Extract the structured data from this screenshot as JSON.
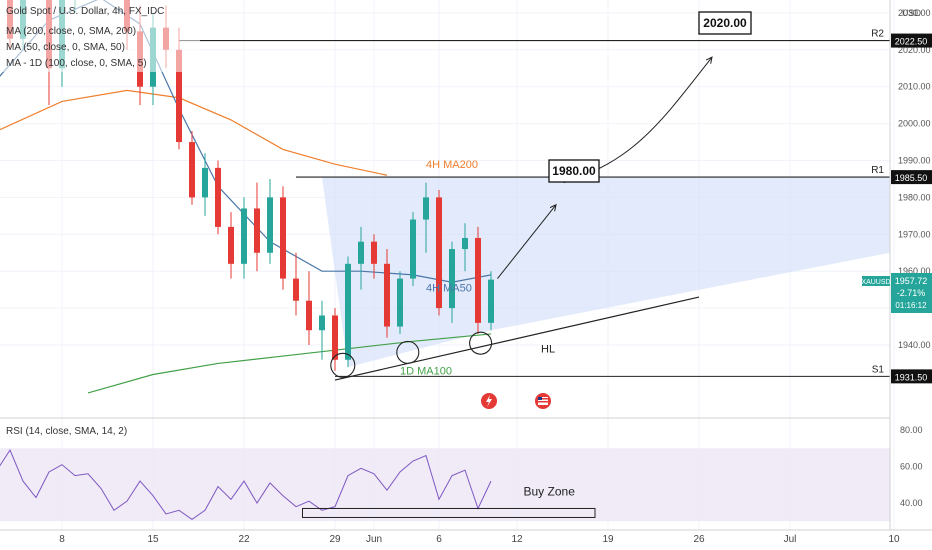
{
  "header": {
    "symbol_line": "Gold Spot / U.S. Dollar, 4h, FX_IDC",
    "indicators": [
      "MA (200, close, 0, SMA, 200)",
      "MA (50, close, 0, SMA, 50)",
      "MA - 1D (100, close, 0, SMA, 5)"
    ],
    "currency": "USD"
  },
  "colors": {
    "up": "#26a69a",
    "down": "#e53935",
    "ma50": "#4a76a8",
    "ma200": "#f07e2c",
    "ma100d": "#43a047",
    "zone": "#d8e3fb",
    "rsi": "#7e57c2",
    "rsi_band": "#ede7f6"
  },
  "price_axis": {
    "ticks": [
      1940,
      1950,
      1960,
      1970,
      1980,
      1990,
      2000,
      2010,
      2020,
      2030
    ],
    "tick_labels": [
      "1940.00",
      "1950.00",
      "1960.00",
      "1970.00",
      "1980.00",
      "1990.00",
      "2000.00",
      "2010.00",
      "2020.00",
      "2030.00"
    ]
  },
  "rsi_axis": {
    "ticks": [
      40,
      60,
      80
    ],
    "tick_labels": [
      "40.00",
      "60.00",
      "80.00"
    ]
  },
  "time_axis": {
    "labels": [
      "8",
      "15",
      "22",
      "29",
      "Jun",
      "6",
      "12",
      "19",
      "26",
      "Jul",
      "10"
    ],
    "units": [
      8,
      15,
      22,
      29,
      32,
      37,
      43,
      50,
      57,
      64,
      72
    ]
  },
  "levels": [
    {
      "name": "R2",
      "value": 2022.5,
      "label": "2022.50"
    },
    {
      "name": "R1",
      "value": 1985.5,
      "label": "1985.50"
    },
    {
      "name": "S1",
      "value": 1931.5,
      "label": "1931.50"
    }
  ],
  "current_price": {
    "symbol": "XAUUSD",
    "price": "1957.72",
    "change": "-2.71%",
    "countdown": "01:16:12",
    "value": 1957.72
  },
  "annotations": {
    "target1": "1980.00",
    "target2": "2020.00",
    "hl": "HL",
    "ma200_label": "4H MA200",
    "ma50_label": "4H MA50",
    "ma100_label": "1D MA100",
    "rsi_title": "RSI (14, close, SMA, 14, 2)",
    "buy_zone": "Buy Zone"
  },
  "chart_data": {
    "type": "candlestick",
    "x_unit": "day",
    "ohlc": [
      [
        2,
        2035,
        2044,
        2028,
        2041
      ],
      [
        3,
        2041,
        2052,
        2036,
        2039
      ],
      [
        4,
        2039,
        2047,
        2020,
        2023
      ],
      [
        5,
        2023,
        2048,
        2020,
        2045
      ],
      [
        6,
        2045,
        2058,
        2038,
        2050
      ],
      [
        7,
        2050,
        2053,
        2005,
        2015
      ],
      [
        8,
        2015,
        2040,
        2010,
        2035
      ],
      [
        9,
        2035,
        2060,
        2030,
        2055
      ],
      [
        10,
        2055,
        2068,
        2040,
        2044
      ],
      [
        11,
        2044,
        2062,
        2038,
        2058
      ],
      [
        12,
        2058,
        2062,
        2040,
        2045
      ],
      [
        13,
        2045,
        2050,
        2020,
        2025
      ],
      [
        14,
        2025,
        2032,
        2005,
        2010
      ],
      [
        15,
        2010,
        2030,
        2005,
        2026
      ],
      [
        16,
        2026,
        2032,
        2015,
        2020
      ],
      [
        17,
        2020,
        2026,
        1993,
        1995
      ],
      [
        18,
        1995,
        1998,
        1978,
        1980
      ],
      [
        19,
        1980,
        1992,
        1975,
        1988
      ],
      [
        20,
        1988,
        1990,
        1970,
        1972
      ],
      [
        21,
        1972,
        1976,
        1958,
        1962
      ],
      [
        22,
        1962,
        1980,
        1958,
        1977
      ],
      [
        23,
        1977,
        1984,
        1960,
        1965
      ],
      [
        24,
        1965,
        1985,
        1962,
        1980
      ],
      [
        25,
        1980,
        1983,
        1955,
        1958
      ],
      [
        26,
        1958,
        1965,
        1948,
        1952
      ],
      [
        27,
        1952,
        1960,
        1940,
        1944
      ],
      [
        28,
        1944,
        1952,
        1936,
        1948
      ],
      [
        29,
        1948,
        1950,
        1933,
        1936
      ],
      [
        30,
        1936,
        1964,
        1934,
        1962
      ],
      [
        31,
        1962,
        1972,
        1955,
        1968
      ],
      [
        32,
        1968,
        1970,
        1958,
        1962
      ],
      [
        33,
        1962,
        1966,
        1942,
        1945
      ],
      [
        34,
        1945,
        1960,
        1943,
        1958
      ],
      [
        35,
        1958,
        1976,
        1956,
        1974
      ],
      [
        36,
        1974,
        1984,
        1965,
        1980
      ],
      [
        37,
        1980,
        1982,
        1948,
        1950
      ],
      [
        38,
        1950,
        1968,
        1946,
        1966
      ],
      [
        39,
        1966,
        1973,
        1960,
        1969
      ],
      [
        40,
        1969,
        1972,
        1943,
        1946
      ],
      [
        41,
        1946,
        1960,
        1944,
        1957.72
      ]
    ],
    "series": [
      {
        "name": "4H MA200",
        "points": [
          [
            -1,
            1989
          ],
          [
            3,
            1998
          ],
          [
            8,
            2006
          ],
          [
            13,
            2009
          ],
          [
            17,
            2007
          ],
          [
            21,
            2001
          ],
          [
            25,
            1993
          ],
          [
            29,
            1989
          ],
          [
            33,
            1986
          ]
        ]
      },
      {
        "name": "4H MA50",
        "points": [
          [
            -1,
            1990
          ],
          [
            3,
            2012
          ],
          [
            7,
            2028
          ],
          [
            11,
            2034
          ],
          [
            14,
            2027
          ],
          [
            17,
            2004
          ],
          [
            20,
            1983
          ],
          [
            24,
            1968
          ],
          [
            28,
            1960
          ],
          [
            31,
            1960
          ],
          [
            35,
            1959
          ],
          [
            38,
            1957
          ],
          [
            41,
            1959
          ]
        ]
      },
      {
        "name": "1D MA100",
        "points": [
          [
            10,
            1927
          ],
          [
            15,
            1932
          ],
          [
            20,
            1935
          ],
          [
            25,
            1937
          ],
          [
            30,
            1939
          ],
          [
            35,
            1941
          ],
          [
            41,
            1943
          ]
        ]
      }
    ],
    "rsi": {
      "name": "RSI",
      "points": [
        [
          -1,
          61
        ],
        [
          1,
          63
        ],
        [
          3,
          58
        ],
        [
          4,
          69
        ],
        [
          5,
          52
        ],
        [
          6,
          43
        ],
        [
          7,
          57
        ],
        [
          8,
          61
        ],
        [
          9,
          55
        ],
        [
          10,
          56
        ],
        [
          11,
          48
        ],
        [
          12,
          36
        ],
        [
          13,
          41
        ],
        [
          14,
          52
        ],
        [
          15,
          44
        ],
        [
          16,
          34
        ],
        [
          17,
          36
        ],
        [
          18,
          31
        ],
        [
          19,
          36
        ],
        [
          20,
          49
        ],
        [
          21,
          42
        ],
        [
          22,
          52
        ],
        [
          23,
          40
        ],
        [
          24,
          51
        ],
        [
          25,
          44
        ],
        [
          26,
          38
        ],
        [
          27,
          41
        ],
        [
          28,
          36
        ],
        [
          29,
          38
        ],
        [
          30,
          55
        ],
        [
          31,
          59
        ],
        [
          32,
          56
        ],
        [
          33,
          47
        ],
        [
          34,
          57
        ],
        [
          35,
          63
        ],
        [
          36,
          66
        ],
        [
          37,
          42
        ],
        [
          38,
          55
        ],
        [
          39,
          58
        ],
        [
          40,
          37
        ],
        [
          41,
          52
        ]
      ]
    },
    "ylim": [
      1926,
      2038
    ],
    "rsi_ylim": [
      30,
      85
    ]
  }
}
